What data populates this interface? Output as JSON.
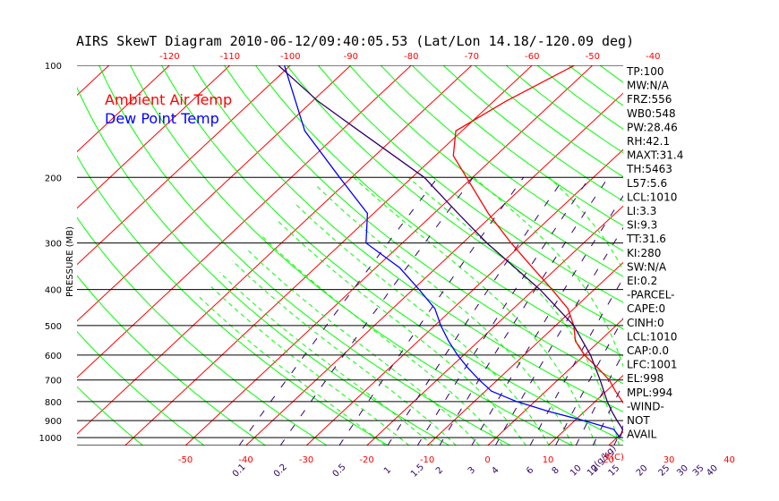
{
  "chart_data": {
    "type": "line",
    "title": "AIRS SkewT Diagram 2010-06-12/09:40:05.53 (Lat/Lon 14.18/-120.09 deg)",
    "ylabel": "PRESSURE (MB)",
    "xlabel": "T(C)",
    "mixing_ratio_label": "g(g/kg)",
    "yscale": "log",
    "ylim": [
      1050,
      100
    ],
    "pressure_ticks": [
      100,
      200,
      300,
      400,
      500,
      600,
      700,
      800,
      900,
      1000
    ],
    "pressure_tick_labels": [
      "100",
      "200",
      "300",
      "400",
      "500",
      "600",
      "700",
      "800",
      "900",
      "1000"
    ],
    "top_temp_ticks": [
      -120,
      -110,
      -100,
      -90,
      -80,
      -70,
      -60,
      -50,
      -40
    ],
    "top_temp_tick_labels": [
      "-120",
      "-110",
      "-100",
      "-90",
      "-80",
      "-70",
      "-60",
      "-50",
      "-40"
    ],
    "bottom_temp_ticks": [
      -50,
      -40,
      -30,
      -20,
      -10,
      0,
      10,
      20,
      30,
      40
    ],
    "bottom_temp_tick_labels": [
      "-50",
      "-40",
      "-30",
      "-20",
      "-10",
      "0",
      "10",
      "20",
      "30",
      "40"
    ],
    "mixing_ratio_values": [
      0.1,
      0.2,
      0.5,
      1,
      1.5,
      2,
      3,
      4,
      6,
      8,
      10,
      12,
      15,
      20,
      25,
      30,
      35,
      40
    ],
    "mixing_ratio_labels": [
      "0.1",
      "0.2",
      "0.5",
      "1",
      "1.5",
      "2",
      "3",
      "4",
      "6",
      "8",
      "10",
      "12",
      "15",
      "20",
      "25",
      "30",
      "35",
      "40"
    ],
    "series": [
      {
        "name": "Ambient Air Temp",
        "color": "#ff0000",
        "p": [
          1000,
          950,
          900,
          850,
          800,
          750,
          700,
          650,
          600,
          550,
          500,
          450,
          400,
          350,
          300,
          250,
          200,
          175,
          150,
          125,
          100
        ],
        "t": [
          21.5,
          21.5,
          20.2,
          17.5,
          14.5,
          11.5,
          8.5,
          4.5,
          0,
          -4,
          -7,
          -11,
          -17,
          -24,
          -32,
          -41,
          -51,
          -57,
          -61,
          -58,
          -53
        ]
      },
      {
        "name": "Dew Point Temp",
        "color": "#0000ff",
        "p": [
          1000,
          950,
          900,
          850,
          800,
          750,
          700,
          650,
          600,
          550,
          500,
          450,
          400,
          350,
          300,
          250,
          200,
          150,
          100
        ],
        "t": [
          20.5,
          18,
          11.5,
          4,
          -3,
          -9,
          -13,
          -17,
          -21,
          -25,
          -29,
          -33,
          -39,
          -46,
          -56,
          -61,
          -72,
          -86,
          -101
        ]
      },
      {
        "name": "Parcel",
        "color": "#330066",
        "p": [
          1000,
          950,
          900,
          850,
          800,
          700,
          600,
          500,
          400,
          300,
          250,
          200,
          150,
          125,
          100
        ],
        "t": [
          20.5,
          19.5,
          17,
          14.5,
          12,
          7,
          1,
          -7,
          -19,
          -36,
          -46,
          -58,
          -77,
          -89,
          -102
        ]
      }
    ],
    "legend": [
      "Ambient Air Temp",
      "Dew Point Temp"
    ],
    "indices": [
      "TP:100",
      "MW:N/A",
      "FRZ:556",
      "WB0:548",
      "PW:28.46",
      "RH:42.1",
      "MAXT:31.4",
      "TH:5463",
      "L57:5.6",
      "LCL:1010",
      "LI:3.3",
      "SI:9.3",
      "TT:31.6",
      "KI:280",
      "SW:N/A",
      "EI:0.2",
      "-PARCEL-",
      "CAPE:0",
      "CINH:0",
      "LCL:1010",
      "CAP:0.0",
      "LFC:1001",
      "EL:998",
      "MPL:994",
      "-WIND-",
      "NOT",
      "AVAIL"
    ],
    "colors": {
      "isotherm": "#ff0000",
      "dry_adiabat": "#00ff00",
      "moist_adiabat": "#00ff00",
      "mixing_ratio": "#330066",
      "axis_labels": "#ff0000",
      "mixing_labels": "#330066"
    }
  }
}
